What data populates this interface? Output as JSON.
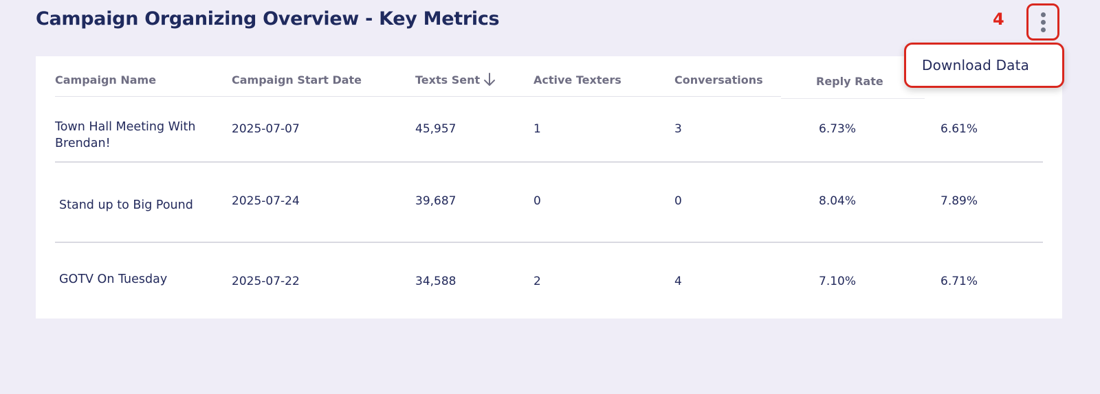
{
  "header": {
    "title": "Campaign Organizing Overview - Key Metrics",
    "step_number": "4",
    "menu_icon": "more-vertical-icon"
  },
  "dropdown": {
    "items": [
      {
        "label": "Download Data"
      }
    ]
  },
  "table": {
    "columns": [
      {
        "label": "Campaign Name"
      },
      {
        "label": "Campaign Start Date"
      },
      {
        "label": "Texts Sent",
        "sort": "descending",
        "sort_icon": "arrow-down-icon"
      },
      {
        "label": "Active Texters"
      },
      {
        "label": "Conversations"
      },
      {
        "label": "Reply Rate"
      }
    ],
    "rows": [
      {
        "name": "Town Hall Meeting With Brendan!",
        "start_date": "2025-07-07",
        "texts_sent": "45,957",
        "active_texters": "1",
        "conversations": "3",
        "reply_rate": "6.73%",
        "extra": "6.61%"
      },
      {
        "name": "Stand up to Big Pound",
        "start_date": "2025-07-24",
        "texts_sent": "39,687",
        "active_texters": "0",
        "conversations": "0",
        "reply_rate": "8.04%",
        "extra": "7.89%"
      },
      {
        "name": "GOTV On Tuesday",
        "start_date": "2025-07-22",
        "texts_sent": "34,588",
        "active_texters": "2",
        "conversations": "4",
        "reply_rate": "7.10%",
        "extra": "6.71%"
      }
    ]
  }
}
